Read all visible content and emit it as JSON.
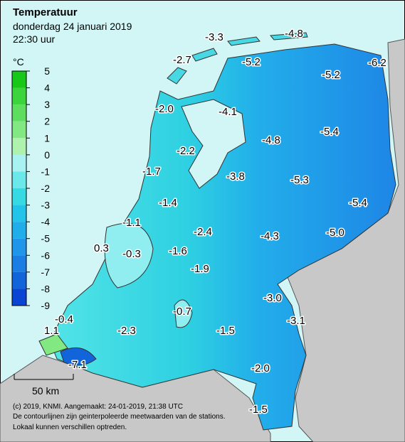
{
  "header": {
    "title": "Temperatuur",
    "date": "donderdag 24 januari 2019",
    "time": "22:30 uur"
  },
  "legend": {
    "unit": "°C",
    "ticks": [
      5,
      4,
      3,
      2,
      1,
      0,
      -1,
      -2,
      -3,
      -4,
      -5,
      -6,
      -7,
      -8,
      -9
    ],
    "colors": [
      "#18c818",
      "#3cd43c",
      "#5ede5e",
      "#82e882",
      "#aef2ae",
      "#a8f2f2",
      "#6ae8ea",
      "#36dae2",
      "#22c4ea",
      "#20aeea",
      "#2096ea",
      "#1a7ee4",
      "#1264da",
      "#0a44d2"
    ]
  },
  "map_labels": [
    "-3.3",
    "-4.8",
    "-2.7",
    "-5.2",
    "-6.2",
    "-5.2",
    "-2.0",
    "-4.1",
    "-5.4",
    "-4.8",
    "-2.2",
    "-1.7",
    "-3.8",
    "-5.3",
    "-1.4",
    "-5.4",
    "-1.1",
    "-2.4",
    "-4.3",
    "-5.0",
    "0.3",
    "-0.3",
    "-1.6",
    "-1.9",
    "-3.0",
    "-0.7",
    "-0.4",
    "-3.1",
    "1.1",
    "-2.3",
    "-1.5",
    "-7.1",
    "-2.0",
    "-1.5"
  ],
  "scale_bar": "50 km",
  "footer": [
    "(c) 2019, KNMI. Aangemaakt: 24-01-2019, 21:38 UTC",
    "De contourlijnen zijn geinterpoleerde meetwaarden van de stations.",
    "Lokaal kunnen verschillen optreden."
  ]
}
